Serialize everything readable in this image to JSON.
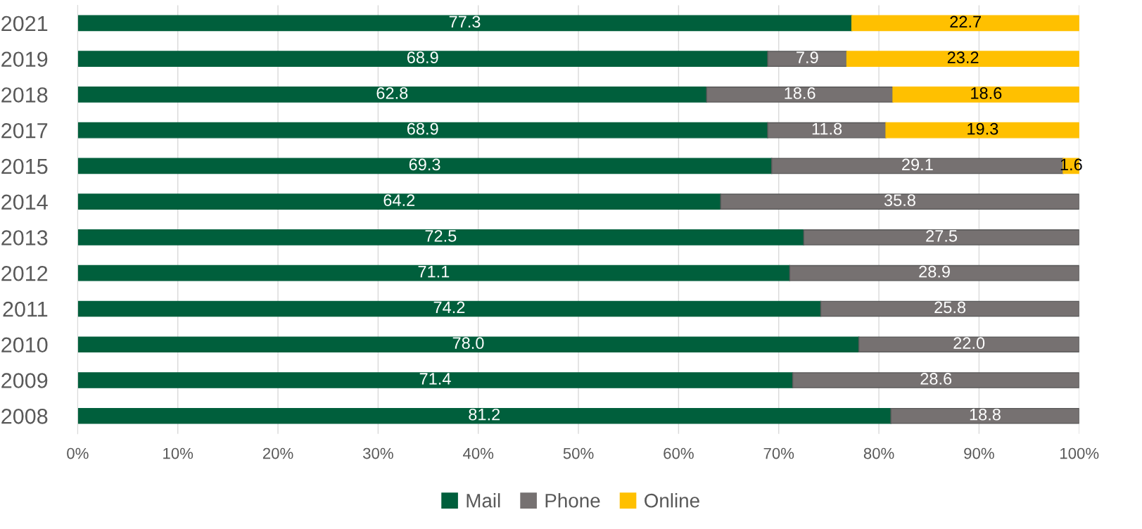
{
  "chart_data": {
    "type": "bar",
    "orientation": "horizontal",
    "stacked": true,
    "categories": [
      "2021",
      "2019",
      "2018",
      "2017",
      "2015",
      "2014",
      "2013",
      "2012",
      "2011",
      "2010",
      "2009",
      "2008"
    ],
    "series": [
      {
        "name": "Mail",
        "color": "#005f3c",
        "values": [
          77.3,
          68.9,
          62.8,
          68.9,
          69.3,
          64.2,
          72.5,
          71.1,
          74.2,
          78.0,
          71.4,
          81.2
        ],
        "value_labels": [
          "77.3",
          "68.9",
          "62.8",
          "68.9",
          "69.3",
          "64.2",
          "72.5",
          "71.1",
          "74.2",
          "78.0",
          "71.4",
          "81.2"
        ]
      },
      {
        "name": "Phone",
        "color": "#767171",
        "values": [
          null,
          7.9,
          18.6,
          11.8,
          29.1,
          35.8,
          27.5,
          28.9,
          25.8,
          22.0,
          28.6,
          18.8
        ],
        "value_labels": [
          null,
          "7.9",
          "18.6",
          "11.8",
          "29.1",
          "35.8",
          "27.5",
          "28.9",
          "25.8",
          "22.0",
          "28.6",
          "18.8"
        ]
      },
      {
        "name": "Online",
        "color": "#ffc000",
        "values": [
          22.7,
          23.2,
          18.6,
          19.3,
          1.6,
          null,
          null,
          null,
          null,
          null,
          null,
          null
        ],
        "value_labels": [
          "22.7",
          "23.2",
          "18.6",
          "19.3",
          "1.6",
          null,
          null,
          null,
          null,
          null,
          null,
          null
        ]
      }
    ],
    "xlim": [
      0,
      100
    ],
    "xticks": [
      {
        "value": 0,
        "label": "0%"
      },
      {
        "value": 10,
        "label": "10%"
      },
      {
        "value": 20,
        "label": "20%"
      },
      {
        "value": 30,
        "label": "30%"
      },
      {
        "value": 40,
        "label": "40%"
      },
      {
        "value": 50,
        "label": "50%"
      },
      {
        "value": 60,
        "label": "60%"
      },
      {
        "value": 70,
        "label": "70%"
      },
      {
        "value": 80,
        "label": "80%"
      },
      {
        "value": 90,
        "label": "90%"
      },
      {
        "value": 100,
        "label": "100%"
      }
    ],
    "grid": "x",
    "legend": "bottom"
  }
}
